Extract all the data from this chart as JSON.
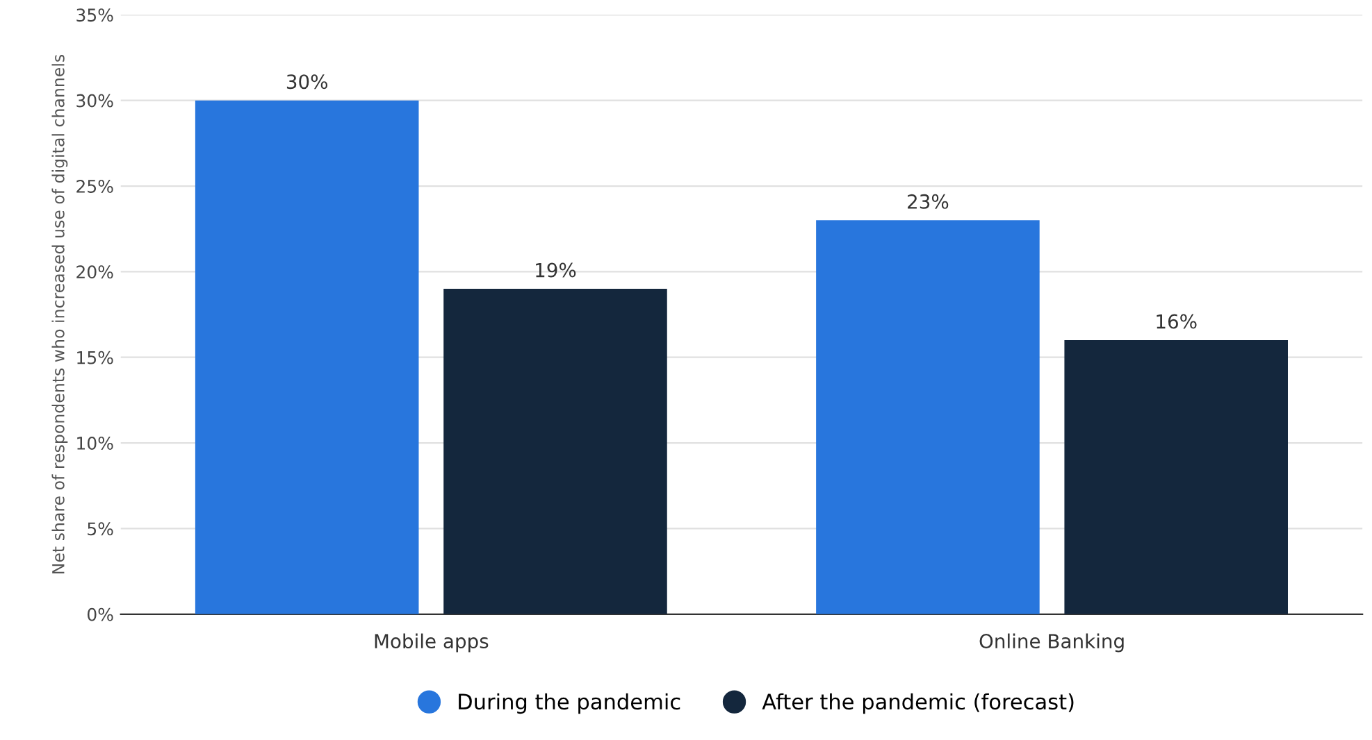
{
  "chart_data": {
    "type": "bar",
    "ylabel": "Net share of respondents who increased use of digital channels",
    "categories": [
      "Mobile apps",
      "Online Banking"
    ],
    "series": [
      {
        "name": "During the pandemic",
        "color": "#2876dd",
        "values": [
          30,
          23
        ],
        "value_labels": [
          "30%",
          "23%"
        ]
      },
      {
        "name": "After the pandemic (forecast)",
        "color": "#14273d",
        "values": [
          19,
          16
        ],
        "value_labels": [
          "19%",
          "16%"
        ]
      }
    ],
    "ylim": [
      0,
      35
    ],
    "yticks": [
      {
        "value": 0,
        "label": "0%"
      },
      {
        "value": 5,
        "label": "5%"
      },
      {
        "value": 10,
        "label": "10%"
      },
      {
        "value": 15,
        "label": "15%"
      },
      {
        "value": 20,
        "label": "20%"
      },
      {
        "value": 25,
        "label": "25%"
      },
      {
        "value": 30,
        "label": "30%"
      },
      {
        "value": 35,
        "label": "35%"
      }
    ],
    "grid": "y",
    "legend": "bottom"
  }
}
